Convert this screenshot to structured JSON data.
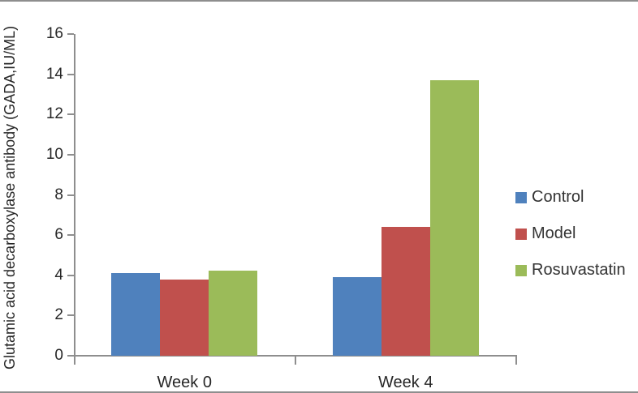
{
  "figure": {
    "border_color": "#8e8e8e",
    "background": "#ffffff",
    "text_color": "#262626",
    "axis_color": "#8e8e8e"
  },
  "chart_data": {
    "type": "bar",
    "title": "",
    "xlabel": "",
    "ylabel": "Glutamic acid decarboxylase antibody (GADA,IU/ML)",
    "categories": [
      "Week 0",
      "Week 4"
    ],
    "series": [
      {
        "name": "Control",
        "color": "#4F81BD",
        "values": [
          4.1,
          3.9
        ]
      },
      {
        "name": "Model",
        "color": "#C0504D",
        "values": [
          3.8,
          6.4
        ]
      },
      {
        "name": "Rosuvastatin",
        "color": "#9BBB59",
        "values": [
          4.25,
          13.7
        ]
      }
    ],
    "ylim": [
      0,
      16
    ],
    "ytick_step": 2,
    "ytick_labels": [
      "0",
      "2",
      "4",
      "6",
      "8",
      "10",
      "12",
      "14",
      "16"
    ],
    "grid": false,
    "legend_position": "right"
  }
}
